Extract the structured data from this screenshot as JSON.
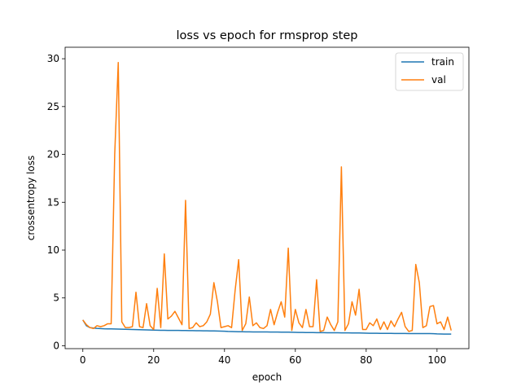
{
  "chart_data": {
    "type": "line",
    "title": "loss vs epoch for rmsprop step",
    "xlabel": "epoch",
    "ylabel": "crossentropy loss",
    "xlim": [
      -5,
      109
    ],
    "ylim": [
      -0.3,
      31.2
    ],
    "xticks": [
      0,
      20,
      40,
      60,
      80,
      100
    ],
    "yticks": [
      0,
      5,
      10,
      15,
      20,
      25,
      30
    ],
    "grid": false,
    "legend": "top-right",
    "series": [
      {
        "name": "train",
        "color": "#1f77b4",
        "x": [
          0,
          1,
          2,
          3,
          4,
          5,
          6,
          7,
          8,
          9,
          10,
          11,
          12,
          13,
          14,
          15,
          16,
          17,
          18,
          19,
          20,
          21,
          22,
          23,
          24,
          25,
          26,
          27,
          28,
          29,
          30,
          31,
          32,
          33,
          34,
          35,
          36,
          37,
          38,
          39,
          40,
          41,
          42,
          43,
          44,
          45,
          46,
          47,
          48,
          49,
          50,
          51,
          52,
          53,
          54,
          55,
          56,
          57,
          58,
          59,
          60,
          61,
          62,
          63,
          64,
          65,
          66,
          67,
          68,
          69,
          70,
          71,
          72,
          73,
          74,
          75,
          76,
          77,
          78,
          79,
          80,
          81,
          82,
          83,
          84,
          85,
          86,
          87,
          88,
          89,
          90,
          91,
          92,
          93,
          94,
          95,
          96,
          97,
          98,
          99,
          100,
          101,
          102,
          103,
          104
        ],
        "values": [
          2.7,
          2.1,
          1.9,
          1.85,
          1.82,
          1.8,
          1.78,
          1.77,
          1.76,
          1.75,
          1.74,
          1.73,
          1.72,
          1.71,
          1.7,
          1.69,
          1.68,
          1.67,
          1.66,
          1.65,
          1.64,
          1.63,
          1.62,
          1.62,
          1.61,
          1.61,
          1.6,
          1.6,
          1.59,
          1.59,
          1.58,
          1.58,
          1.57,
          1.57,
          1.56,
          1.56,
          1.55,
          1.55,
          1.54,
          1.53,
          1.52,
          1.5,
          1.49,
          1.48,
          1.47,
          1.47,
          1.46,
          1.46,
          1.45,
          1.45,
          1.44,
          1.44,
          1.44,
          1.43,
          1.43,
          1.43,
          1.42,
          1.42,
          1.42,
          1.41,
          1.4,
          1.39,
          1.39,
          1.38,
          1.38,
          1.38,
          1.37,
          1.37,
          1.37,
          1.36,
          1.36,
          1.36,
          1.36,
          1.35,
          1.35,
          1.35,
          1.34,
          1.34,
          1.34,
          1.33,
          1.32,
          1.31,
          1.31,
          1.31,
          1.3,
          1.3,
          1.3,
          1.3,
          1.29,
          1.29,
          1.29,
          1.29,
          1.28,
          1.28,
          1.28,
          1.28,
          1.27,
          1.27,
          1.27,
          1.26,
          1.24,
          1.23,
          1.22,
          1.22,
          1.22
        ]
      },
      {
        "name": "val",
        "color": "#ff7f0e",
        "x": [
          0,
          1,
          2,
          3,
          4,
          5,
          6,
          7,
          8,
          9,
          10,
          11,
          12,
          13,
          14,
          15,
          16,
          17,
          18,
          19,
          20,
          21,
          22,
          23,
          24,
          25,
          26,
          27,
          28,
          29,
          30,
          31,
          32,
          33,
          34,
          35,
          36,
          37,
          38,
          39,
          40,
          41,
          42,
          43,
          44,
          45,
          46,
          47,
          48,
          49,
          50,
          51,
          52,
          53,
          54,
          55,
          56,
          57,
          58,
          59,
          60,
          61,
          62,
          63,
          64,
          65,
          66,
          67,
          68,
          69,
          70,
          71,
          72,
          73,
          74,
          75,
          76,
          77,
          78,
          79,
          80,
          81,
          82,
          83,
          84,
          85,
          86,
          87,
          88,
          89,
          90,
          91,
          92,
          93,
          94,
          95,
          96,
          97,
          98,
          99,
          100,
          101,
          102,
          103,
          104
        ],
        "values": [
          2.7,
          2.2,
          1.9,
          1.8,
          2.1,
          2.0,
          2.1,
          2.3,
          2.3,
          20.0,
          29.6,
          2.5,
          1.9,
          1.9,
          2.0,
          5.6,
          2.0,
          1.9,
          4.4,
          2.1,
          1.7,
          6.0,
          1.9,
          9.6,
          2.8,
          3.1,
          3.6,
          2.9,
          2.2,
          15.2,
          1.8,
          1.9,
          2.4,
          2.0,
          2.1,
          2.5,
          3.3,
          6.6,
          4.6,
          1.9,
          2.0,
          2.1,
          1.9,
          5.8,
          9.0,
          1.6,
          2.3,
          5.1,
          2.1,
          2.4,
          1.9,
          1.8,
          2.1,
          3.8,
          2.2,
          3.5,
          4.6,
          3.0,
          10.2,
          1.6,
          3.8,
          2.4,
          1.9,
          3.8,
          2.0,
          2.0,
          6.9,
          1.5,
          1.6,
          3.0,
          2.2,
          1.6,
          2.5,
          18.7,
          1.6,
          2.3,
          4.6,
          3.2,
          5.9,
          1.7,
          1.7,
          2.4,
          2.1,
          2.8,
          1.7,
          2.5,
          1.7,
          2.6,
          2.0,
          2.8,
          3.5,
          2.0,
          1.5,
          1.6,
          8.5,
          6.6,
          1.9,
          2.1,
          4.1,
          4.2,
          2.3,
          2.5,
          1.7,
          3.0,
          1.6
        ]
      }
    ]
  }
}
